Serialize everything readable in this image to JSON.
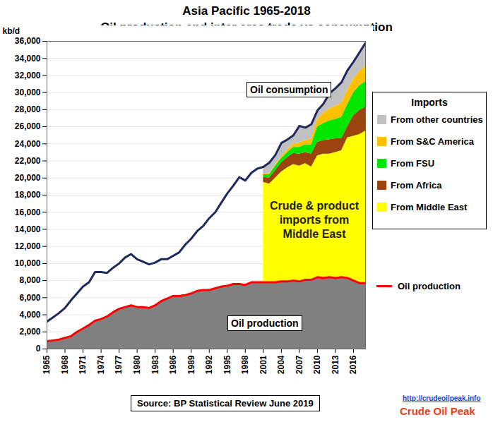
{
  "chart_data": {
    "type": "area",
    "title": "Asia Pacific 1965-2018",
    "subtitle": "Oil production and inter area trade vs consumption",
    "y_label": "kb/d",
    "legend_title": "Imports",
    "annotations": [
      "Crude & product imports from Middle East"
    ],
    "source": "Source: BP Statistical Review June 2019",
    "logo": [
      "http://crudeoilpeak.info",
      "Crude Oil Peak"
    ],
    "stacked": true,
    "grid": true,
    "legend": "right",
    "x": [
      1965,
      1966,
      1967,
      1968,
      1969,
      1970,
      1971,
      1972,
      1973,
      1974,
      1975,
      1976,
      1977,
      1978,
      1979,
      1980,
      1981,
      1982,
      1983,
      1984,
      1985,
      1986,
      1987,
      1988,
      1989,
      1990,
      1991,
      1992,
      1993,
      1994,
      1995,
      1996,
      1997,
      1998,
      1999,
      2000,
      2001,
      2002,
      2003,
      2004,
      2005,
      2006,
      2007,
      2008,
      2009,
      2010,
      2011,
      2012,
      2013,
      2014,
      2015,
      2016,
      2017,
      2018
    ],
    "xlim": [
      1965,
      2018
    ],
    "xticks": [
      1965,
      1968,
      1971,
      1974,
      1977,
      1980,
      1983,
      1986,
      1989,
      1992,
      1995,
      1998,
      2001,
      2004,
      2007,
      2010,
      2013,
      2016
    ],
    "ylim": [
      0,
      36000
    ],
    "yticks": [
      0,
      {
        "value": 2000,
        "label": "2,000"
      },
      {
        "value": 4000,
        "label": "4,000"
      },
      {
        "value": 6000,
        "label": "6,000"
      },
      {
        "value": 8000,
        "label": "8,000"
      },
      {
        "value": 10000,
        "label": "10,000"
      },
      {
        "value": 12000,
        "label": "12,000"
      },
      {
        "value": 14000,
        "label": "14,000"
      },
      {
        "value": 16000,
        "label": "16,000"
      },
      {
        "value": 18000,
        "label": "18,000"
      },
      {
        "value": 20000,
        "label": "20,000"
      },
      {
        "value": 22000,
        "label": "22,000"
      },
      {
        "value": 24000,
        "label": "24,000"
      },
      {
        "value": 26000,
        "label": "26,000"
      },
      {
        "value": 28000,
        "label": "28,000"
      },
      {
        "value": 30000,
        "label": "30,000"
      },
      {
        "value": 32000,
        "label": "32,000"
      },
      {
        "value": 34000,
        "label": "34,000"
      },
      {
        "value": 36000,
        "label": "36,000"
      }
    ],
    "series": [
      {
        "name": "Oil production",
        "type": "area",
        "line_style": "solid",
        "color": "#ff0000",
        "values": [
          900,
          1000,
          1100,
          1300,
          1500,
          2000,
          2400,
          2800,
          3300,
          3500,
          3800,
          4300,
          4700,
          4900,
          5100,
          4900,
          4900,
          4800,
          5100,
          5600,
          5900,
          6200,
          6200,
          6300,
          6500,
          6800,
          6900,
          6900,
          7100,
          7300,
          7400,
          7600,
          7600,
          7500,
          7800,
          7800,
          7800,
          7800,
          7800,
          7900,
          7900,
          8000,
          7900,
          8100,
          8100,
          8400,
          8300,
          8400,
          8300,
          8400,
          8300,
          8000,
          7700,
          7700
        ]
      },
      {
        "name": "From Middle East",
        "type": "area",
        "color": "#ffff00",
        "values": [
          null,
          null,
          null,
          null,
          null,
          null,
          null,
          null,
          null,
          null,
          null,
          null,
          null,
          null,
          null,
          null,
          null,
          null,
          null,
          null,
          null,
          null,
          null,
          null,
          null,
          null,
          null,
          null,
          null,
          null,
          null,
          null,
          null,
          null,
          null,
          null,
          11700,
          11500,
          12200,
          12800,
          13300,
          13600,
          13500,
          13600,
          13200,
          14200,
          14500,
          14400,
          14700,
          14800,
          16400,
          16900,
          17400,
          17800
        ]
      },
      {
        "name": "From Africa",
        "type": "area",
        "color": "#9c4410",
        "values": [
          null,
          null,
          null,
          null,
          null,
          null,
          null,
          null,
          null,
          null,
          null,
          null,
          null,
          null,
          null,
          null,
          null,
          null,
          null,
          null,
          null,
          null,
          null,
          null,
          null,
          null,
          null,
          null,
          null,
          null,
          null,
          null,
          null,
          null,
          null,
          null,
          600,
          700,
          900,
          1100,
          1200,
          1300,
          1400,
          1300,
          1500,
          1600,
          1600,
          1700,
          1600,
          1400,
          1300,
          2400,
          2800,
          2800
        ]
      },
      {
        "name": "From FSU",
        "type": "area",
        "color": "#00e600",
        "values": [
          null,
          null,
          null,
          null,
          null,
          null,
          null,
          null,
          null,
          null,
          null,
          null,
          null,
          null,
          null,
          null,
          null,
          null,
          null,
          null,
          null,
          null,
          null,
          null,
          null,
          null,
          null,
          null,
          null,
          null,
          null,
          null,
          null,
          null,
          null,
          null,
          300,
          400,
          500,
          500,
          600,
          700,
          800,
          900,
          1100,
          1800,
          2000,
          2200,
          2300,
          2500,
          2600,
          2700,
          2900,
          3000
        ]
      },
      {
        "name": "From S&C America",
        "type": "area",
        "color": "#ffc000",
        "values": [
          null,
          null,
          null,
          null,
          null,
          null,
          null,
          null,
          null,
          null,
          null,
          null,
          null,
          null,
          null,
          null,
          null,
          null,
          null,
          null,
          null,
          null,
          null,
          null,
          null,
          null,
          null,
          null,
          null,
          null,
          null,
          null,
          null,
          null,
          null,
          null,
          100,
          100,
          150,
          200,
          300,
          400,
          500,
          500,
          700,
          900,
          1200,
          1400,
          1500,
          1700,
          1700,
          1600,
          1700,
          1800
        ]
      },
      {
        "name": "From other countries",
        "type": "area",
        "color": "#c0c0c0",
        "values": [
          null,
          null,
          null,
          null,
          null,
          null,
          null,
          null,
          null,
          null,
          null,
          null,
          null,
          null,
          null,
          null,
          null,
          null,
          null,
          null,
          null,
          null,
          null,
          null,
          null,
          null,
          null,
          null,
          null,
          null,
          null,
          null,
          null,
          null,
          null,
          null,
          800,
          1300,
          1150,
          1600,
          1200,
          1000,
          2000,
          1500,
          1700,
          1000,
          1100,
          1800,
          2100,
          2400,
          2300,
          2000,
          2200,
          2700
        ]
      },
      {
        "name": "Oil consumption",
        "type": "line",
        "color": "#1f2a5c",
        "values": [
          3200,
          3700,
          4200,
          4800,
          5700,
          6500,
          7300,
          7800,
          9000,
          9000,
          8900,
          9500,
          10000,
          10700,
          11100,
          10500,
          10200,
          9900,
          10100,
          10500,
          10500,
          10900,
          11300,
          12200,
          12900,
          13800,
          14400,
          15300,
          16000,
          17100,
          18200,
          19100,
          20100,
          19700,
          20600,
          21100,
          21300,
          21800,
          22700,
          24100,
          24500,
          25000,
          26100,
          25900,
          26300,
          27900,
          28700,
          29900,
          30500,
          31200,
          32600,
          33600,
          34700,
          35800
        ]
      }
    ]
  }
}
